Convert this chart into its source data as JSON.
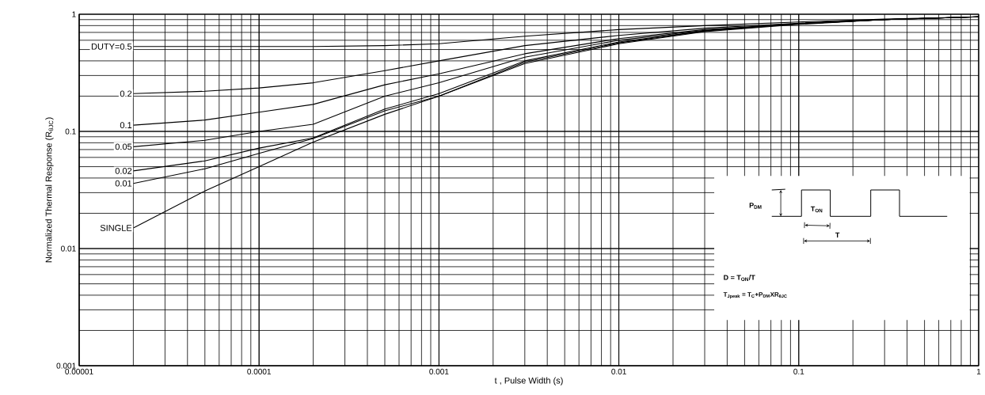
{
  "chart_data": {
    "type": "line",
    "xlabel": "t , Pulse Width (s)",
    "ylabel": "Normalized Thermal Response (R$_{θJC}$)",
    "log": "xy",
    "grid": true,
    "legend": false,
    "xlim": [
      1e-05,
      1
    ],
    "ylim": [
      0.001,
      1
    ],
    "xticks": [
      {
        "value": 1e-05,
        "label": "0.00001"
      },
      {
        "value": 0.0001,
        "label": "0.0001"
      },
      {
        "value": 0.001,
        "label": "0.001"
      },
      {
        "value": 0.01,
        "label": "0.01"
      },
      {
        "value": 0.1,
        "label": "0.1"
      },
      {
        "value": 1,
        "label": "1"
      }
    ],
    "yticks": [
      {
        "value": 0.001,
        "label": "0.001"
      },
      {
        "value": 0.01,
        "label": "0.01"
      },
      {
        "value": 0.1,
        "label": "0.1"
      },
      {
        "value": 1,
        "label": "1"
      }
    ],
    "x": [
      2e-05,
      5e-05,
      0.0001,
      0.0002,
      0.0005,
      0.001,
      0.003,
      0.01,
      0.03,
      0.1,
      0.3,
      1
    ],
    "series": [
      {
        "name": "DUTY=0.5",
        "color": "#000000",
        "values": [
          0.53,
          0.53,
          0.53,
          0.53,
          0.54,
          0.56,
          0.65,
          0.74,
          0.8,
          0.86,
          0.91,
          0.95
        ]
      },
      {
        "name": "0.2",
        "color": "#000000",
        "values": [
          0.21,
          0.22,
          0.235,
          0.26,
          0.33,
          0.4,
          0.54,
          0.66,
          0.76,
          0.84,
          0.9,
          0.95
        ]
      },
      {
        "name": "0.1",
        "color": "#000000",
        "values": [
          0.113,
          0.125,
          0.146,
          0.17,
          0.25,
          0.31,
          0.46,
          0.62,
          0.74,
          0.83,
          0.9,
          0.95
        ]
      },
      {
        "name": "0.05",
        "color": "#000000",
        "values": [
          0.074,
          0.084,
          0.1,
          0.115,
          0.2,
          0.26,
          0.43,
          0.6,
          0.73,
          0.83,
          0.9,
          0.95
        ]
      },
      {
        "name": "0.02",
        "color": "#000000",
        "values": [
          0.046,
          0.056,
          0.072,
          0.088,
          0.155,
          0.21,
          0.4,
          0.58,
          0.72,
          0.83,
          0.9,
          0.95
        ]
      },
      {
        "name": "0.01",
        "color": "#000000",
        "values": [
          0.036,
          0.048,
          0.065,
          0.087,
          0.15,
          0.2,
          0.39,
          0.57,
          0.72,
          0.83,
          0.9,
          0.95
        ]
      },
      {
        "name": "SINGLE",
        "color": "#000000",
        "values": [
          0.015,
          0.031,
          0.05,
          0.081,
          0.14,
          0.2,
          0.38,
          0.56,
          0.71,
          0.82,
          0.9,
          0.95
        ]
      }
    ],
    "annotations": [
      "P$_{DM}$",
      "T$_{ON}$",
      "T",
      "D = T$_{ON}$/T",
      "T$_{Jpeak}$ = T$_{C}$+P$_{DM}$XR$_{θJC}$"
    ]
  }
}
